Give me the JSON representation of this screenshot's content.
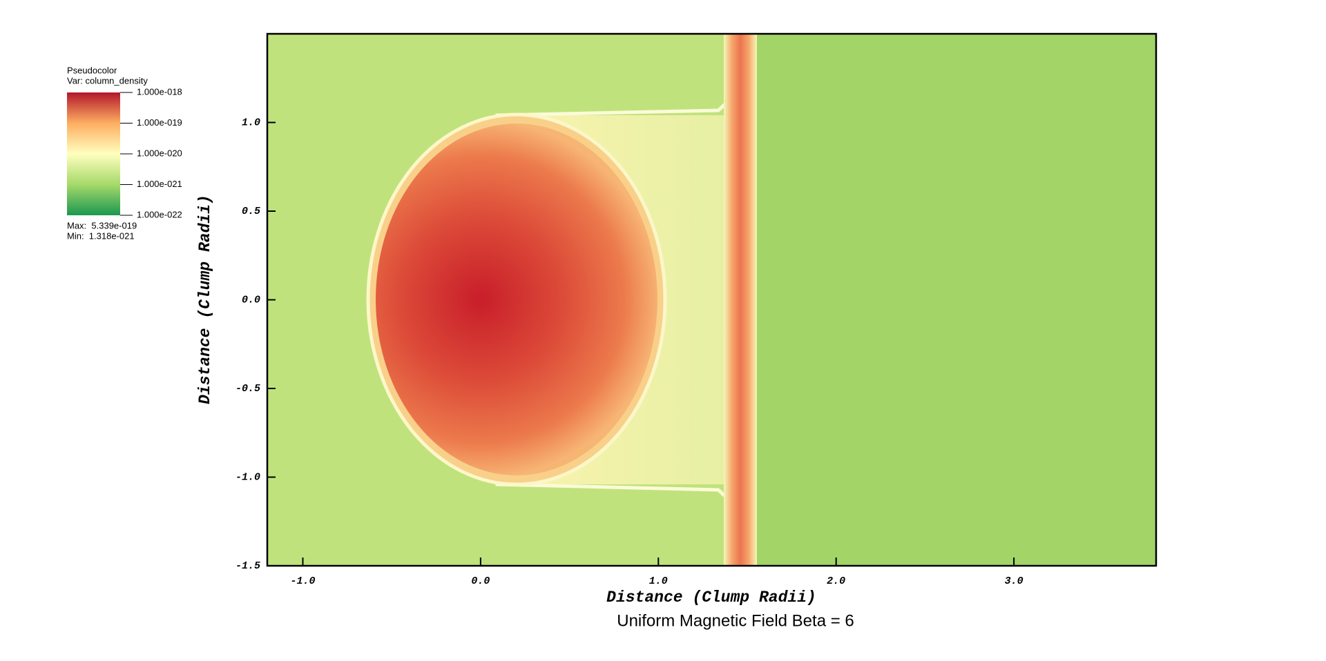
{
  "chart_data": {
    "type": "pseudocolor",
    "title": "Uniform Magnetic Field Beta = 6",
    "x_label": "Distance (Clump Radii)",
    "y_label": "Distance (Clump Radii)",
    "xlim": [
      -1.2,
      3.8
    ],
    "ylim": [
      -1.5,
      1.5
    ],
    "xticks": [
      {
        "value": -1,
        "label": "-1.0"
      },
      {
        "value": 0,
        "label": "0.0"
      },
      {
        "value": 1,
        "label": "1.0"
      },
      {
        "value": 2,
        "label": "2.0"
      },
      {
        "value": 3,
        "label": "3.0"
      }
    ],
    "yticks": [
      {
        "value": 1,
        "label": "1.0"
      },
      0.5,
      {
        "value": 0,
        "label": "0.0"
      },
      -0.5,
      {
        "value": -1,
        "label": "-1.0"
      },
      -1.5
    ],
    "colorbar": {
      "plot_name": "Pseudocolor",
      "variable": "Var: column_density",
      "log_scale": true,
      "clim": [
        1e-22,
        1e-18
      ],
      "ticks": [
        {
          "value": 1e-18,
          "label": "1.000e-018"
        },
        {
          "value": 1e-19,
          "label": "1.000e-019"
        },
        {
          "value": 1e-20,
          "label": "1.000e-020"
        },
        {
          "value": 1e-21,
          "label": "1.000e-021"
        },
        {
          "value": 1e-22,
          "label": "1.000e-022"
        }
      ],
      "colors": [
        "#1a9850",
        "#a6d96a",
        "#ffffbf",
        "#fdae61",
        "#b2182b"
      ],
      "max_label": "Max:  5.339e-019",
      "min_label": "Min:  1.318e-021"
    }
  }
}
